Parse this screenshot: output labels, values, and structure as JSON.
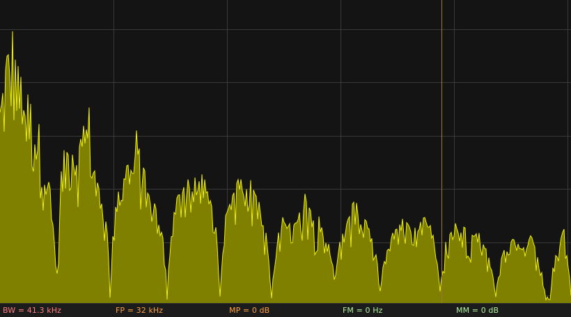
{
  "window": {
    "title": ""
  },
  "display": {
    "background": "#141414",
    "grid_color": "#3a3a3a",
    "grid_columns": 5,
    "grid_rows": 6,
    "trace_fill": "#7f7f00",
    "trace_line": "#f2f200",
    "marker_color": "#9b7a3a",
    "marker_x_fraction": 0.773
  },
  "status": {
    "bw": {
      "text": "BW = 41.3 kHz",
      "color": "#ff7f7f"
    },
    "fp": {
      "text": "FP = 32 kHz",
      "color": "#ffa040"
    },
    "mp": {
      "text": "MP = 0 dB",
      "color": "#ffa040"
    },
    "fm": {
      "text": "FM = 0 Hz",
      "color": "#b0f0a0"
    },
    "mm": {
      "text": "MM = 0 dB",
      "color": "#b0f0a0"
    }
  },
  "spectrum_envelope": [
    [
      0,
      0.7
    ],
    [
      5,
      0.78
    ],
    [
      10,
      0.88
    ],
    [
      14,
      0.86
    ],
    [
      18,
      0.93
    ],
    [
      22,
      0.87
    ],
    [
      26,
      0.8
    ],
    [
      30,
      0.77
    ],
    [
      36,
      0.74
    ],
    [
      42,
      0.7
    ],
    [
      48,
      0.66
    ],
    [
      54,
      0.62
    ],
    [
      60,
      0.56
    ],
    [
      66,
      0.49
    ],
    [
      72,
      0.38
    ],
    [
      78,
      0.24
    ],
    [
      82,
      0.1
    ],
    [
      88,
      0.46
    ],
    [
      96,
      0.55
    ],
    [
      104,
      0.59
    ],
    [
      112,
      0.55
    ],
    [
      120,
      0.6
    ],
    [
      128,
      0.66
    ],
    [
      134,
      0.52
    ],
    [
      140,
      0.4
    ],
    [
      148,
      0.33
    ],
    [
      154,
      0.24
    ],
    [
      158,
      0.05
    ],
    [
      166,
      0.4
    ],
    [
      174,
      0.44
    ],
    [
      182,
      0.45
    ],
    [
      190,
      0.49
    ],
    [
      196,
      0.58
    ],
    [
      202,
      0.5
    ],
    [
      208,
      0.43
    ],
    [
      216,
      0.36
    ],
    [
      226,
      0.3
    ],
    [
      234,
      0.22
    ],
    [
      240,
      0.06
    ],
    [
      248,
      0.28
    ],
    [
      256,
      0.38
    ],
    [
      262,
      0.44
    ],
    [
      270,
      0.4
    ],
    [
      278,
      0.41
    ],
    [
      286,
      0.44
    ],
    [
      294,
      0.4
    ],
    [
      302,
      0.34
    ],
    [
      310,
      0.25
    ],
    [
      316,
      0.05
    ],
    [
      324,
      0.3
    ],
    [
      332,
      0.35
    ],
    [
      340,
      0.4
    ],
    [
      346,
      0.42
    ],
    [
      352,
      0.38
    ],
    [
      360,
      0.4
    ],
    [
      366,
      0.37
    ],
    [
      374,
      0.33
    ],
    [
      382,
      0.24
    ],
    [
      390,
      0.04
    ],
    [
      398,
      0.22
    ],
    [
      406,
      0.28
    ],
    [
      414,
      0.26
    ],
    [
      422,
      0.28
    ],
    [
      430,
      0.3
    ],
    [
      438,
      0.38
    ],
    [
      444,
      0.32
    ],
    [
      452,
      0.28
    ],
    [
      460,
      0.3
    ],
    [
      468,
      0.24
    ],
    [
      474,
      0.18
    ],
    [
      480,
      0.1
    ],
    [
      488,
      0.2
    ],
    [
      496,
      0.26
    ],
    [
      504,
      0.31
    ],
    [
      510,
      0.36
    ],
    [
      516,
      0.3
    ],
    [
      524,
      0.28
    ],
    [
      532,
      0.24
    ],
    [
      540,
      0.16
    ],
    [
      546,
      0.06
    ],
    [
      554,
      0.18
    ],
    [
      562,
      0.22
    ],
    [
      570,
      0.25
    ],
    [
      578,
      0.28
    ],
    [
      586,
      0.26
    ],
    [
      594,
      0.24
    ],
    [
      602,
      0.26
    ],
    [
      610,
      0.3
    ],
    [
      618,
      0.26
    ],
    [
      626,
      0.18
    ],
    [
      632,
      0.05
    ],
    [
      640,
      0.2
    ],
    [
      648,
      0.24
    ],
    [
      656,
      0.28
    ],
    [
      664,
      0.26
    ],
    [
      672,
      0.24
    ],
    [
      680,
      0.22
    ],
    [
      688,
      0.24
    ],
    [
      696,
      0.2
    ],
    [
      704,
      0.14
    ],
    [
      710,
      0.06
    ],
    [
      716,
      0.12
    ],
    [
      724,
      0.18
    ],
    [
      732,
      0.2
    ],
    [
      740,
      0.22
    ],
    [
      748,
      0.2
    ],
    [
      756,
      0.18
    ],
    [
      764,
      0.24
    ],
    [
      772,
      0.16
    ],
    [
      780,
      0.08
    ],
    [
      788,
      0.04
    ],
    [
      796,
      0.14
    ],
    [
      804,
      0.2
    ],
    [
      810,
      0.26
    ],
    [
      816,
      0.18
    ],
    [
      820,
      0.04
    ]
  ]
}
